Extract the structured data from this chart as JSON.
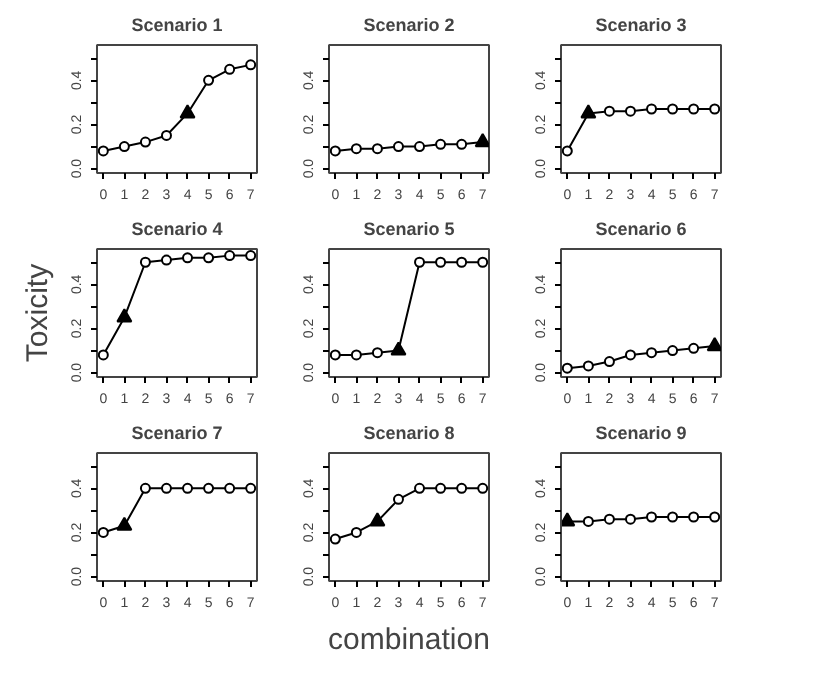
{
  "chart_data": [
    {
      "type": "line",
      "title": "Scenario 1",
      "x": [
        0,
        1,
        2,
        3,
        4,
        5,
        6,
        7
      ],
      "xlim": [
        -0.3,
        7.3
      ],
      "xticks": [
        0,
        1,
        2,
        3,
        4,
        5,
        6,
        7
      ],
      "ylim": [
        -0.02,
        0.56
      ],
      "yticks": [
        {
          "value": 0,
          "label": "0.0"
        },
        {
          "value": 0.1,
          "label": null
        },
        {
          "value": 0.2,
          "label": "0.2"
        },
        {
          "value": 0.3,
          "label": null
        },
        {
          "value": 0.4,
          "label": "0.4"
        },
        {
          "value": 0.5,
          "label": null
        }
      ],
      "series": [
        {
          "color": "#000000",
          "marker": "none",
          "values": [
            0.08,
            0.1,
            0.12,
            0.15,
            0.25,
            0.4,
            0.45,
            0.47
          ]
        },
        {
          "type": "scatter",
          "color": "#000000",
          "marker": "circle",
          "values": [
            0.08,
            0.1,
            0.12,
            0.15,
            null,
            0.4,
            0.45,
            0.47
          ]
        },
        {
          "type": "scatter",
          "color": "#000000",
          "marker": "triangle",
          "x": [
            4
          ],
          "values": [
            0.25
          ]
        }
      ]
    },
    {
      "type": "line",
      "title": "Scenario 2",
      "x": [
        0,
        1,
        2,
        3,
        4,
        5,
        6,
        7
      ],
      "xlim": [
        -0.3,
        7.3
      ],
      "xticks": [
        0,
        1,
        2,
        3,
        4,
        5,
        6,
        7
      ],
      "ylim": [
        -0.02,
        0.56
      ],
      "yticks": [
        {
          "value": 0,
          "label": "0.0"
        },
        {
          "value": 0.1,
          "label": null
        },
        {
          "value": 0.2,
          "label": "0.2"
        },
        {
          "value": 0.3,
          "label": null
        },
        {
          "value": 0.4,
          "label": "0.4"
        },
        {
          "value": 0.5,
          "label": null
        }
      ],
      "series": [
        {
          "color": "#000000",
          "marker": "none",
          "values": [
            0.08,
            0.09,
            0.09,
            0.1,
            0.1,
            0.11,
            0.11,
            0.12
          ]
        },
        {
          "type": "scatter",
          "color": "#000000",
          "marker": "circle",
          "values": [
            0.08,
            0.09,
            0.09,
            0.1,
            0.1,
            0.11,
            0.11,
            null
          ]
        },
        {
          "type": "scatter",
          "color": "#000000",
          "marker": "triangle",
          "x": [
            7
          ],
          "values": [
            0.12
          ]
        }
      ]
    },
    {
      "type": "line",
      "title": "Scenario 3",
      "x": [
        0,
        1,
        2,
        3,
        4,
        5,
        6,
        7
      ],
      "xlim": [
        -0.3,
        7.3
      ],
      "xticks": [
        0,
        1,
        2,
        3,
        4,
        5,
        6,
        7
      ],
      "ylim": [
        -0.02,
        0.56
      ],
      "yticks": [
        {
          "value": 0,
          "label": "0.0"
        },
        {
          "value": 0.1,
          "label": null
        },
        {
          "value": 0.2,
          "label": "0.2"
        },
        {
          "value": 0.3,
          "label": null
        },
        {
          "value": 0.4,
          "label": "0.4"
        },
        {
          "value": 0.5,
          "label": null
        }
      ],
      "series": [
        {
          "color": "#000000",
          "marker": "none",
          "values": [
            0.08,
            0.25,
            0.26,
            0.26,
            0.27,
            0.27,
            0.27,
            0.27
          ]
        },
        {
          "type": "scatter",
          "color": "#000000",
          "marker": "circle",
          "values": [
            0.08,
            null,
            0.26,
            0.26,
            0.27,
            0.27,
            0.27,
            0.27
          ]
        },
        {
          "type": "scatter",
          "color": "#000000",
          "marker": "triangle",
          "x": [
            1
          ],
          "values": [
            0.25
          ]
        }
      ]
    },
    {
      "type": "line",
      "title": "Scenario 4",
      "ylabel": "Toxicity",
      "x": [
        0,
        1,
        2,
        3,
        4,
        5,
        6,
        7
      ],
      "xlim": [
        -0.3,
        7.3
      ],
      "xticks": [
        0,
        1,
        2,
        3,
        4,
        5,
        6,
        7
      ],
      "ylim": [
        -0.02,
        0.56
      ],
      "yticks": [
        {
          "value": 0,
          "label": "0.0"
        },
        {
          "value": 0.1,
          "label": null
        },
        {
          "value": 0.2,
          "label": "0.2"
        },
        {
          "value": 0.3,
          "label": null
        },
        {
          "value": 0.4,
          "label": "0.4"
        },
        {
          "value": 0.5,
          "label": null
        }
      ],
      "series": [
        {
          "color": "#000000",
          "marker": "none",
          "values": [
            0.08,
            0.25,
            0.5,
            0.51,
            0.52,
            0.52,
            0.53,
            0.53
          ]
        },
        {
          "type": "scatter",
          "color": "#000000",
          "marker": "circle",
          "values": [
            0.08,
            null,
            0.5,
            0.51,
            0.52,
            0.52,
            0.53,
            0.53
          ]
        },
        {
          "type": "scatter",
          "color": "#000000",
          "marker": "triangle",
          "x": [
            1
          ],
          "values": [
            0.25
          ]
        }
      ]
    },
    {
      "type": "line",
      "title": "Scenario 5",
      "x": [
        0,
        1,
        2,
        3,
        4,
        5,
        6,
        7
      ],
      "xlim": [
        -0.3,
        7.3
      ],
      "xticks": [
        0,
        1,
        2,
        3,
        4,
        5,
        6,
        7
      ],
      "ylim": [
        -0.02,
        0.56
      ],
      "yticks": [
        {
          "value": 0,
          "label": "0.0"
        },
        {
          "value": 0.1,
          "label": null
        },
        {
          "value": 0.2,
          "label": "0.2"
        },
        {
          "value": 0.3,
          "label": null
        },
        {
          "value": 0.4,
          "label": "0.4"
        },
        {
          "value": 0.5,
          "label": null
        }
      ],
      "series": [
        {
          "color": "#000000",
          "marker": "none",
          "values": [
            0.08,
            0.08,
            0.09,
            0.1,
            0.5,
            0.5,
            0.5,
            0.5
          ]
        },
        {
          "type": "scatter",
          "color": "#000000",
          "marker": "circle",
          "values": [
            0.08,
            0.08,
            0.09,
            null,
            0.5,
            0.5,
            0.5,
            0.5
          ]
        },
        {
          "type": "scatter",
          "color": "#000000",
          "marker": "triangle",
          "x": [
            3
          ],
          "values": [
            0.1
          ]
        }
      ]
    },
    {
      "type": "line",
      "title": "Scenario 6",
      "x": [
        0,
        1,
        2,
        3,
        4,
        5,
        6,
        7
      ],
      "xlim": [
        -0.3,
        7.3
      ],
      "xticks": [
        0,
        1,
        2,
        3,
        4,
        5,
        6,
        7
      ],
      "ylim": [
        -0.02,
        0.56
      ],
      "yticks": [
        {
          "value": 0,
          "label": "0.0"
        },
        {
          "value": 0.1,
          "label": null
        },
        {
          "value": 0.2,
          "label": "0.2"
        },
        {
          "value": 0.3,
          "label": null
        },
        {
          "value": 0.4,
          "label": "0.4"
        },
        {
          "value": 0.5,
          "label": null
        }
      ],
      "series": [
        {
          "color": "#000000",
          "marker": "none",
          "values": [
            0.02,
            0.03,
            0.05,
            0.08,
            0.09,
            0.1,
            0.11,
            0.12
          ]
        },
        {
          "type": "scatter",
          "color": "#000000",
          "marker": "circle",
          "values": [
            0.02,
            0.03,
            0.05,
            0.08,
            0.09,
            0.1,
            0.11,
            null
          ]
        },
        {
          "type": "scatter",
          "color": "#000000",
          "marker": "triangle",
          "x": [
            7
          ],
          "values": [
            0.12
          ]
        }
      ]
    },
    {
      "type": "line",
      "title": "Scenario 7",
      "x": [
        0,
        1,
        2,
        3,
        4,
        5,
        6,
        7
      ],
      "xlim": [
        -0.3,
        7.3
      ],
      "xticks": [
        0,
        1,
        2,
        3,
        4,
        5,
        6,
        7
      ],
      "ylim": [
        -0.02,
        0.56
      ],
      "yticks": [
        {
          "value": 0,
          "label": "0.0"
        },
        {
          "value": 0.1,
          "label": null
        },
        {
          "value": 0.2,
          "label": "0.2"
        },
        {
          "value": 0.3,
          "label": null
        },
        {
          "value": 0.4,
          "label": "0.4"
        },
        {
          "value": 0.5,
          "label": null
        }
      ],
      "series": [
        {
          "color": "#000000",
          "marker": "none",
          "values": [
            0.2,
            0.23,
            0.4,
            0.4,
            0.4,
            0.4,
            0.4,
            0.4
          ]
        },
        {
          "type": "scatter",
          "color": "#000000",
          "marker": "circle",
          "values": [
            0.2,
            null,
            0.4,
            0.4,
            0.4,
            0.4,
            0.4,
            0.4
          ]
        },
        {
          "type": "scatter",
          "color": "#000000",
          "marker": "triangle",
          "x": [
            1
          ],
          "values": [
            0.23
          ]
        }
      ]
    },
    {
      "type": "line",
      "title": "Scenario 8",
      "xlabel": "combination",
      "x": [
        0,
        1,
        2,
        3,
        4,
        5,
        6,
        7
      ],
      "xlim": [
        -0.3,
        7.3
      ],
      "xticks": [
        0,
        1,
        2,
        3,
        4,
        5,
        6,
        7
      ],
      "ylim": [
        -0.02,
        0.56
      ],
      "yticks": [
        {
          "value": 0,
          "label": "0.0"
        },
        {
          "value": 0.1,
          "label": null
        },
        {
          "value": 0.2,
          "label": "0.2"
        },
        {
          "value": 0.3,
          "label": null
        },
        {
          "value": 0.4,
          "label": "0.4"
        },
        {
          "value": 0.5,
          "label": null
        }
      ],
      "series": [
        {
          "color": "#000000",
          "marker": "none",
          "values": [
            0.17,
            0.2,
            0.25,
            0.35,
            0.4,
            0.4,
            0.4,
            0.4
          ]
        },
        {
          "type": "scatter",
          "color": "#000000",
          "marker": "circle",
          "values": [
            0.17,
            0.2,
            null,
            0.35,
            0.4,
            0.4,
            0.4,
            0.4
          ]
        },
        {
          "type": "scatter",
          "color": "#000000",
          "marker": "triangle",
          "x": [
            2
          ],
          "values": [
            0.25
          ]
        }
      ]
    },
    {
      "type": "line",
      "title": "Scenario 9",
      "x": [
        0,
        1,
        2,
        3,
        4,
        5,
        6,
        7
      ],
      "xlim": [
        -0.3,
        7.3
      ],
      "xticks": [
        0,
        1,
        2,
        3,
        4,
        5,
        6,
        7
      ],
      "ylim": [
        -0.02,
        0.56
      ],
      "yticks": [
        {
          "value": 0,
          "label": "0.0"
        },
        {
          "value": 0.1,
          "label": null
        },
        {
          "value": 0.2,
          "label": "0.2"
        },
        {
          "value": 0.3,
          "label": null
        },
        {
          "value": 0.4,
          "label": "0.4"
        },
        {
          "value": 0.5,
          "label": null
        }
      ],
      "series": [
        {
          "color": "#000000",
          "marker": "none",
          "values": [
            0.25,
            0.25,
            0.26,
            0.26,
            0.27,
            0.27,
            0.27,
            0.27
          ]
        },
        {
          "type": "scatter",
          "color": "#000000",
          "marker": "circle",
          "values": [
            null,
            0.25,
            0.26,
            0.26,
            0.27,
            0.27,
            0.27,
            0.27
          ]
        },
        {
          "type": "scatter",
          "color": "#000000",
          "marker": "triangle",
          "x": [
            0
          ],
          "values": [
            0.25
          ]
        }
      ]
    }
  ]
}
